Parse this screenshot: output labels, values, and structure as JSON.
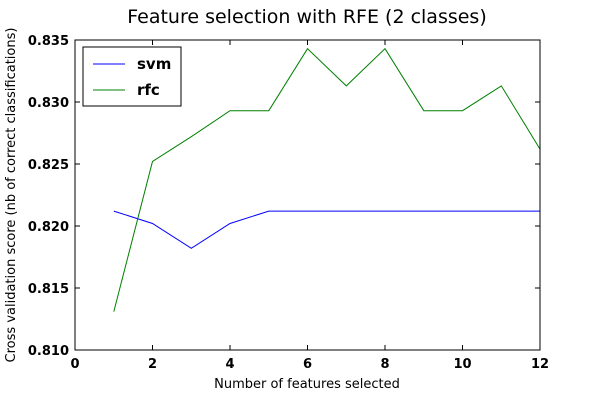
{
  "chart_data": {
    "type": "line",
    "title": "Feature selection with RFE (2 classes)",
    "xlabel": "Number of features selected",
    "ylabel": "Cross validation score (nb of correct classifications)",
    "xlim": [
      0,
      12
    ],
    "ylim": [
      0.81,
      0.835
    ],
    "xticks": [
      "0",
      "2",
      "4",
      "6",
      "8",
      "10",
      "12"
    ],
    "yticks": [
      "0.810",
      "0.815",
      "0.820",
      "0.825",
      "0.830",
      "0.835"
    ],
    "grid": false,
    "legend_position": "top-left",
    "x": [
      1,
      2,
      3,
      4,
      5,
      6,
      7,
      8,
      9,
      10,
      11,
      12
    ],
    "series": [
      {
        "name": "svm",
        "color": "#0000ff",
        "values": [
          0.8212,
          0.8202,
          0.8182,
          0.8202,
          0.8212,
          0.8212,
          0.8212,
          0.8212,
          0.8212,
          0.8212,
          0.8212,
          0.8212
        ]
      },
      {
        "name": "rfc",
        "color": "#008000",
        "values": [
          0.8131,
          0.8252,
          0.8272,
          0.8293,
          0.8293,
          0.8343,
          0.8313,
          0.8343,
          0.8293,
          0.8293,
          0.8313,
          0.8262
        ]
      }
    ]
  }
}
